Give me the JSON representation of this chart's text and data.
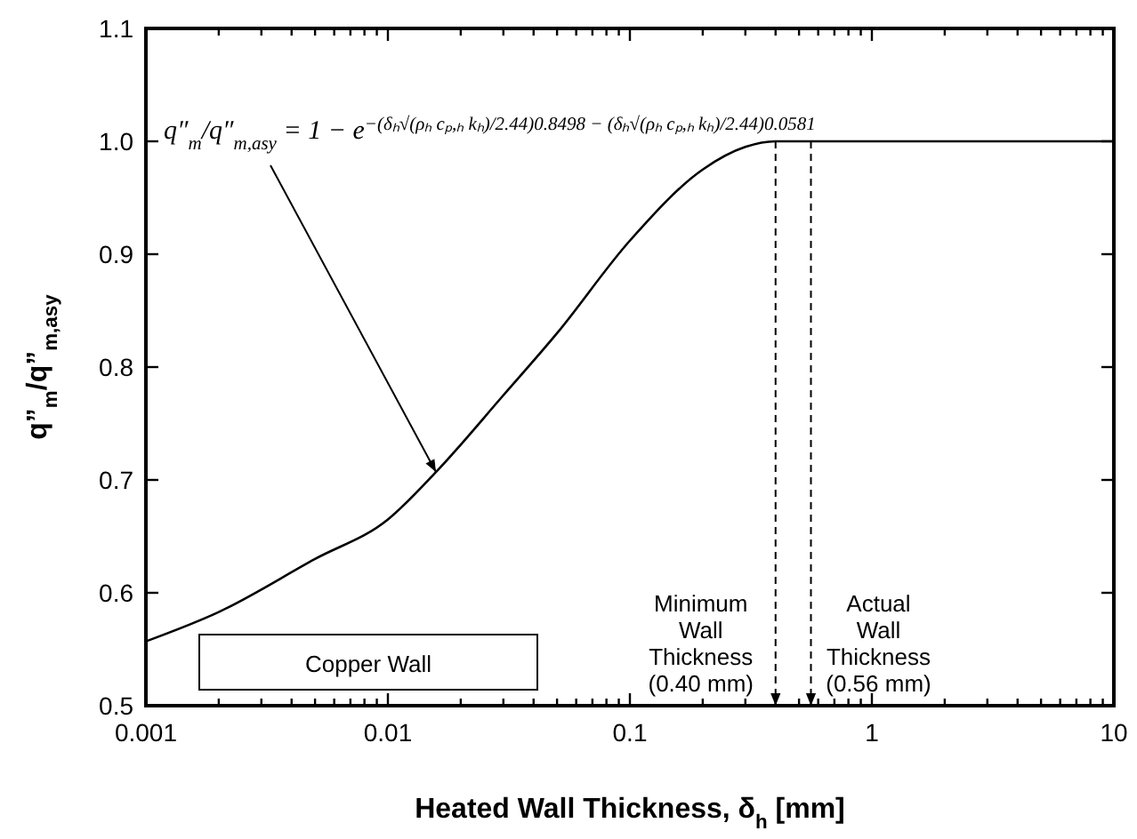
{
  "chart_data": {
    "type": "line",
    "xlabel": "Heated Wall Thickness, δ$_{h}$ [mm]",
    "ylabel": "q”$_{m}$/q”$_{m,asy}$",
    "log": "x",
    "marker": "none",
    "line_style": "solid",
    "x": [
      0.001,
      0.002,
      0.005,
      0.01,
      0.0158,
      0.03,
      0.05,
      0.1,
      0.2,
      0.3,
      0.4,
      1,
      10
    ],
    "series": [
      {
        "color": "#000000",
        "values": [
          0.557,
          0.583,
          0.63,
          0.665,
          0.707,
          0.775,
          0.83,
          0.912,
          0.975,
          0.995,
          1.0,
          1.0,
          1.0
        ]
      }
    ],
    "xlim": [
      0.001,
      10
    ],
    "ylim": [
      0.5,
      1.1
    ],
    "xticks": [
      0.001,
      {
        "value": 0.002,
        "label": null
      },
      {
        "value": 0.003,
        "label": null
      },
      {
        "value": 0.004,
        "label": null
      },
      {
        "value": 0.005,
        "label": null
      },
      {
        "value": 0.006,
        "label": null
      },
      {
        "value": 0.007,
        "label": null
      },
      {
        "value": 0.008,
        "label": null
      },
      {
        "value": 0.009,
        "label": null
      },
      0.01,
      {
        "value": 0.02,
        "label": null
      },
      {
        "value": 0.03,
        "label": null
      },
      {
        "value": 0.04,
        "label": null
      },
      {
        "value": 0.05,
        "label": null
      },
      {
        "value": 0.06,
        "label": null
      },
      {
        "value": 0.07,
        "label": null
      },
      {
        "value": 0.08,
        "label": null
      },
      {
        "value": 0.09,
        "label": null
      },
      0.1,
      {
        "value": 0.2,
        "label": null
      },
      {
        "value": 0.3,
        "label": null
      },
      {
        "value": 0.4,
        "label": null
      },
      {
        "value": 0.5,
        "label": null
      },
      {
        "value": 0.6,
        "label": null
      },
      {
        "value": 0.7,
        "label": null
      },
      {
        "value": 0.8,
        "label": null
      },
      {
        "value": 0.9,
        "label": null
      },
      1,
      {
        "value": 2,
        "label": null
      },
      {
        "value": 3,
        "label": null
      },
      {
        "value": 4,
        "label": null
      },
      {
        "value": 5,
        "label": null
      },
      {
        "value": 6,
        "label": null
      },
      {
        "value": 7,
        "label": null
      },
      {
        "value": 8,
        "label": null
      },
      {
        "value": 9,
        "label": null
      },
      10
    ],
    "yticks": [
      0.5,
      0.6,
      0.7,
      0.8,
      0.9,
      {
        "value": 1,
        "label": "1.0"
      },
      1.1
    ],
    "ref_lines": [
      {
        "axis": "x",
        "value": 0.4,
        "label": "Minimum\nWall\nThickness\n(0.40 mm)",
        "line_style": "dashed"
      },
      {
        "axis": "x",
        "value": 0.56,
        "label": "Actual\nWall\nThickness\n(0.56 mm)",
        "line_style": "dashed"
      }
    ],
    "annotations": [
      {
        "text": "q″$_{m}$/q″$_{m,asy}$ = 1 − e$^{−(δₕ√(ρₕ cₚ,ₕ kₕ)/2.44)0.8498 − (δₕ√(ρₕ cₚ,ₕ kₕ)/2.44)0.0581}$",
        "x": 0.0158,
        "y": 0.707
      },
      "Copper Wall"
    ]
  }
}
